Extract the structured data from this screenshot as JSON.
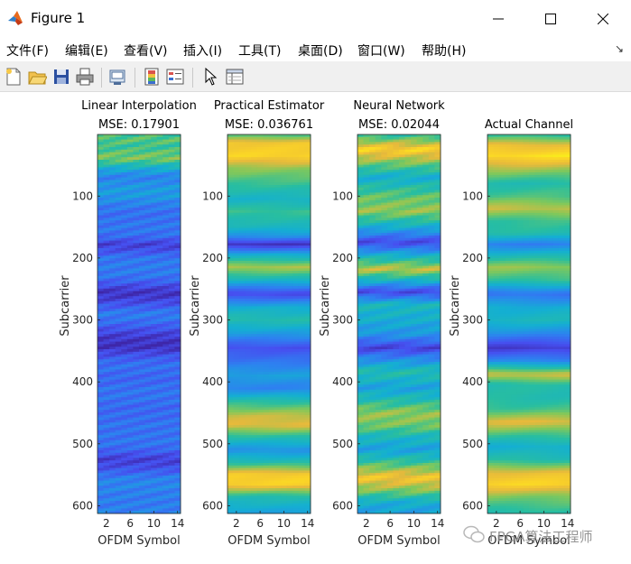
{
  "window": {
    "title": "Figure 1",
    "controls": {
      "minimize_icon": "minimize-icon",
      "maximize_icon": "maximize-icon",
      "close_icon": "close-icon"
    }
  },
  "menu": {
    "items": [
      "文件(F)",
      "编辑(E)",
      "查看(V)",
      "插入(I)",
      "工具(T)",
      "桌面(D)",
      "窗口(W)",
      "帮助(H)"
    ],
    "dock_icon": "dock-arrow-icon"
  },
  "toolbar": {
    "icons": [
      "new-figure-icon",
      "open-file-icon",
      "save-icon",
      "print-icon",
      "link-plot-icon",
      "insert-colorbar-icon",
      "insert-legend-icon",
      "pointer-icon",
      "property-editor-icon"
    ]
  },
  "watermark": {
    "text": "FPGA算法工程师"
  },
  "colors": {
    "low": "#3e26a8",
    "mid": "#24b8b0",
    "high": "#f9fb15"
  },
  "chart_data": [
    {
      "type": "heatmap",
      "title": "Linear Interpolation",
      "subtitle": "MSE: 0.17901",
      "xlabel": "OFDM Symbol",
      "ylabel": "Subcarrier",
      "xticks": [
        2,
        6,
        10,
        14
      ],
      "yticks": [
        100,
        200,
        300,
        400,
        500,
        600
      ],
      "xlim": [
        0.5,
        14.5
      ],
      "ylim": [
        0.5,
        612.5
      ],
      "bands": [
        [
          10,
          0.62
        ],
        [
          20,
          0.55
        ],
        [
          40,
          0.7
        ],
        [
          70,
          0.3
        ],
        [
          100,
          0.35
        ],
        [
          130,
          0.28
        ],
        [
          165,
          0.2
        ],
        [
          178,
          0.1
        ],
        [
          200,
          0.3
        ],
        [
          230,
          0.22
        ],
        [
          255,
          0.08
        ],
        [
          290,
          0.25
        ],
        [
          325,
          0.12
        ],
        [
          345,
          0.06
        ],
        [
          375,
          0.22
        ],
        [
          410,
          0.28
        ],
        [
          440,
          0.18
        ],
        [
          470,
          0.3
        ],
        [
          500,
          0.22
        ],
        [
          525,
          0.1
        ],
        [
          555,
          0.3
        ],
        [
          580,
          0.25
        ],
        [
          612,
          0.35
        ]
      ]
    },
    {
      "type": "heatmap",
      "title": "Practical Estimator",
      "subtitle": "MSE: 0.036761",
      "xlabel": "OFDM Symbol",
      "ylabel": "Subcarrier",
      "xticks": [
        2,
        6,
        10,
        14
      ],
      "yticks": [
        100,
        200,
        300,
        400,
        500,
        600
      ],
      "xlim": [
        0.5,
        14.5
      ],
      "ylim": [
        0.5,
        612.5
      ],
      "bands": [
        [
          0,
          0.6
        ],
        [
          15,
          0.88
        ],
        [
          35,
          0.92
        ],
        [
          55,
          0.72
        ],
        [
          80,
          0.6
        ],
        [
          105,
          0.48
        ],
        [
          125,
          0.6
        ],
        [
          150,
          0.5
        ],
        [
          165,
          0.35
        ],
        [
          178,
          0.05
        ],
        [
          195,
          0.45
        ],
        [
          215,
          0.75
        ],
        [
          235,
          0.5
        ],
        [
          258,
          0.12
        ],
        [
          280,
          0.45
        ],
        [
          300,
          0.55
        ],
        [
          320,
          0.4
        ],
        [
          345,
          0.15
        ],
        [
          365,
          0.25
        ],
        [
          390,
          0.4
        ],
        [
          410,
          0.3
        ],
        [
          430,
          0.55
        ],
        [
          455,
          0.78
        ],
        [
          470,
          0.82
        ],
        [
          490,
          0.55
        ],
        [
          510,
          0.35
        ],
        [
          530,
          0.55
        ],
        [
          550,
          0.9
        ],
        [
          565,
          0.92
        ],
        [
          585,
          0.55
        ],
        [
          612,
          0.4
        ]
      ]
    },
    {
      "type": "heatmap",
      "title": "Neural Network",
      "subtitle": "MSE: 0.02044",
      "xlabel": "OFDM Symbol",
      "ylabel": "Subcarrier",
      "xticks": [
        2,
        6,
        10,
        14
      ],
      "yticks": [
        100,
        200,
        300,
        400,
        500,
        600
      ],
      "xlim": [
        0.5,
        14.5
      ],
      "ylim": [
        0.5,
        612.5
      ],
      "bands": [
        [
          0,
          0.55
        ],
        [
          25,
          0.92
        ],
        [
          45,
          0.7
        ],
        [
          70,
          0.45
        ],
        [
          100,
          0.65
        ],
        [
          125,
          0.72
        ],
        [
          150,
          0.45
        ],
        [
          175,
          0.12
        ],
        [
          195,
          0.45
        ],
        [
          218,
          0.78
        ],
        [
          235,
          0.5
        ],
        [
          255,
          0.12
        ],
        [
          275,
          0.5
        ],
        [
          300,
          0.45
        ],
        [
          325,
          0.35
        ],
        [
          345,
          0.1
        ],
        [
          365,
          0.35
        ],
        [
          385,
          0.55
        ],
        [
          410,
          0.4
        ],
        [
          430,
          0.55
        ],
        [
          450,
          0.72
        ],
        [
          470,
          0.68
        ],
        [
          490,
          0.5
        ],
        [
          510,
          0.4
        ],
        [
          530,
          0.6
        ],
        [
          555,
          0.88
        ],
        [
          575,
          0.7
        ],
        [
          595,
          0.45
        ],
        [
          612,
          0.4
        ]
      ]
    },
    {
      "type": "heatmap",
      "title": "Actual Channel",
      "subtitle": "",
      "xlabel": "OFDM Symbol",
      "ylabel": "Subcarrier",
      "xticks": [
        2,
        6,
        10,
        14
      ],
      "yticks": [
        100,
        200,
        300,
        400,
        500,
        600
      ],
      "xlim": [
        0.5,
        14.5
      ],
      "ylim": [
        0.5,
        612.5
      ],
      "bands": [
        [
          0,
          0.55
        ],
        [
          18,
          0.85
        ],
        [
          35,
          0.95
        ],
        [
          55,
          0.75
        ],
        [
          80,
          0.55
        ],
        [
          100,
          0.62
        ],
        [
          120,
          0.78
        ],
        [
          140,
          0.6
        ],
        [
          160,
          0.55
        ],
        [
          178,
          0.3
        ],
        [
          195,
          0.5
        ],
        [
          215,
          0.72
        ],
        [
          235,
          0.6
        ],
        [
          258,
          0.25
        ],
        [
          280,
          0.45
        ],
        [
          300,
          0.5
        ],
        [
          320,
          0.35
        ],
        [
          345,
          0.08
        ],
        [
          365,
          0.3
        ],
        [
          388,
          0.8
        ],
        [
          405,
          0.55
        ],
        [
          425,
          0.55
        ],
        [
          445,
          0.62
        ],
        [
          465,
          0.82
        ],
        [
          485,
          0.62
        ],
        [
          505,
          0.45
        ],
        [
          525,
          0.55
        ],
        [
          548,
          0.85
        ],
        [
          565,
          0.92
        ],
        [
          585,
          0.7
        ],
        [
          612,
          0.55
        ]
      ]
    }
  ]
}
